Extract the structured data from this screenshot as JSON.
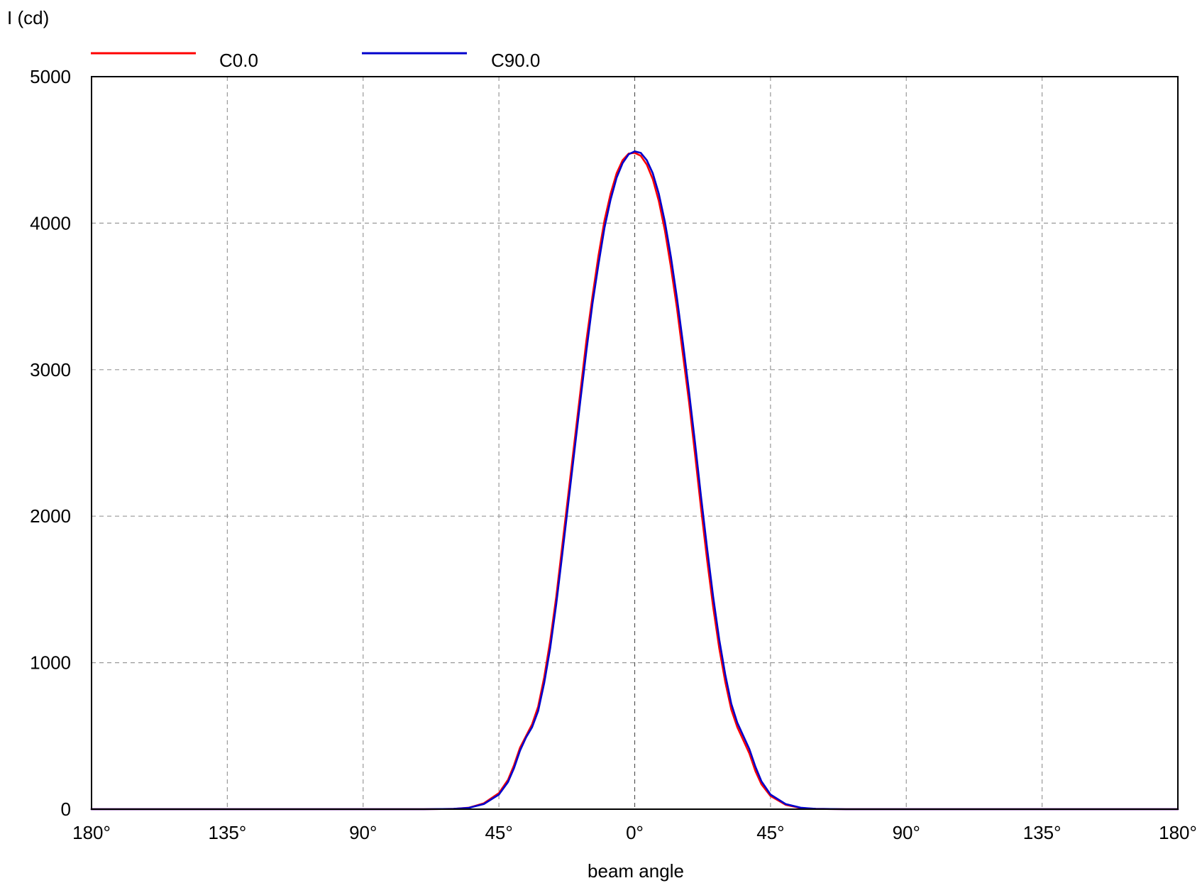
{
  "chart_data": {
    "type": "line",
    "ylabel": "I (cd)",
    "xlabel": "beam angle",
    "xlim": [
      -180,
      180
    ],
    "ylim": [
      0,
      5000
    ],
    "x_ticks": [
      -180,
      -135,
      -90,
      -45,
      0,
      45,
      90,
      135,
      180
    ],
    "x_tick_labels": [
      "180°",
      "135°",
      "90°",
      "45°",
      "0°",
      "45°",
      "90°",
      "135°",
      "180°"
    ],
    "y_ticks": [
      0,
      1000,
      2000,
      3000,
      4000,
      5000
    ],
    "y_tick_labels": [
      "0",
      "1000",
      "2000",
      "3000",
      "4000",
      "5000"
    ],
    "grid": true,
    "legend_position": "top",
    "series": [
      {
        "name": "C0.0",
        "color": "#ff0000",
        "points": [
          [
            -180,
            0
          ],
          [
            -70,
            0
          ],
          [
            -60,
            2
          ],
          [
            -55,
            10
          ],
          [
            -50,
            40
          ],
          [
            -45,
            110
          ],
          [
            -42,
            200
          ],
          [
            -40,
            300
          ],
          [
            -38,
            420
          ],
          [
            -36,
            500
          ],
          [
            -34,
            580
          ],
          [
            -32,
            700
          ],
          [
            -30,
            900
          ],
          [
            -28,
            1150
          ],
          [
            -26,
            1450
          ],
          [
            -24,
            1800
          ],
          [
            -22,
            2150
          ],
          [
            -20,
            2500
          ],
          [
            -18,
            2850
          ],
          [
            -16,
            3200
          ],
          [
            -14,
            3500
          ],
          [
            -12,
            3780
          ],
          [
            -10,
            4020
          ],
          [
            -8,
            4200
          ],
          [
            -6,
            4340
          ],
          [
            -4,
            4430
          ],
          [
            -2,
            4475
          ],
          [
            0,
            4480
          ],
          [
            2,
            4460
          ],
          [
            4,
            4400
          ],
          [
            6,
            4300
          ],
          [
            8,
            4150
          ],
          [
            10,
            3950
          ],
          [
            12,
            3700
          ],
          [
            14,
            3420
          ],
          [
            16,
            3100
          ],
          [
            18,
            2780
          ],
          [
            20,
            2420
          ],
          [
            22,
            2050
          ],
          [
            24,
            1700
          ],
          [
            26,
            1380
          ],
          [
            28,
            1100
          ],
          [
            30,
            870
          ],
          [
            32,
            680
          ],
          [
            34,
            560
          ],
          [
            36,
            470
          ],
          [
            38,
            380
          ],
          [
            40,
            260
          ],
          [
            42,
            170
          ],
          [
            45,
            90
          ],
          [
            50,
            30
          ],
          [
            55,
            8
          ],
          [
            60,
            2
          ],
          [
            70,
            0
          ],
          [
            180,
            0
          ]
        ]
      },
      {
        "name": "C90.0",
        "color": "#0000cc",
        "points": [
          [
            -180,
            0
          ],
          [
            -70,
            0
          ],
          [
            -60,
            2
          ],
          [
            -55,
            9
          ],
          [
            -50,
            35
          ],
          [
            -45,
            100
          ],
          [
            -42,
            185
          ],
          [
            -40,
            280
          ],
          [
            -38,
            400
          ],
          [
            -36,
            490
          ],
          [
            -34,
            560
          ],
          [
            -32,
            670
          ],
          [
            -30,
            860
          ],
          [
            -28,
            1100
          ],
          [
            -26,
            1400
          ],
          [
            -24,
            1740
          ],
          [
            -22,
            2090
          ],
          [
            -20,
            2440
          ],
          [
            -18,
            2790
          ],
          [
            -16,
            3130
          ],
          [
            -14,
            3450
          ],
          [
            -12,
            3720
          ],
          [
            -10,
            3970
          ],
          [
            -8,
            4160
          ],
          [
            -6,
            4310
          ],
          [
            -4,
            4410
          ],
          [
            -2,
            4470
          ],
          [
            0,
            4490
          ],
          [
            2,
            4480
          ],
          [
            4,
            4430
          ],
          [
            6,
            4340
          ],
          [
            8,
            4200
          ],
          [
            10,
            4010
          ],
          [
            12,
            3770
          ],
          [
            14,
            3490
          ],
          [
            16,
            3180
          ],
          [
            18,
            2850
          ],
          [
            20,
            2500
          ],
          [
            22,
            2130
          ],
          [
            24,
            1780
          ],
          [
            26,
            1450
          ],
          [
            28,
            1160
          ],
          [
            30,
            920
          ],
          [
            32,
            720
          ],
          [
            34,
            590
          ],
          [
            36,
            500
          ],
          [
            38,
            410
          ],
          [
            40,
            290
          ],
          [
            42,
            190
          ],
          [
            45,
            100
          ],
          [
            50,
            35
          ],
          [
            55,
            10
          ],
          [
            60,
            2
          ],
          [
            70,
            0
          ],
          [
            180,
            0
          ]
        ]
      }
    ]
  }
}
